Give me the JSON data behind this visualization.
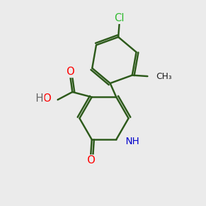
{
  "bg_color": "#ebebeb",
  "bond_color": "#2d5a1b",
  "bond_width": 1.8,
  "atom_colors": {
    "O": "#ff0000",
    "N": "#0000cc",
    "Cl": "#33bb33",
    "C": "#1a1a1a",
    "H": "#666666"
  },
  "font_size": 9.5
}
